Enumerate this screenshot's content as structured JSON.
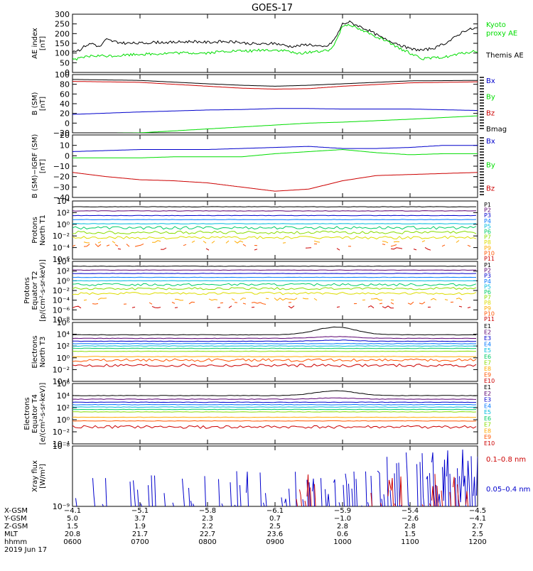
{
  "title": "GOES-17",
  "chart_data": [
    {
      "id": "ae",
      "type": "line",
      "ylabel": [
        "AE index",
        "[nT]"
      ],
      "ylim": [
        0,
        300
      ],
      "ticks": [
        "0",
        "50",
        "100",
        "150",
        "200",
        "250",
        "300"
      ],
      "tick_values": [
        0,
        50,
        100,
        150,
        200,
        250,
        300
      ],
      "x": [
        6.0,
        6.1,
        6.2,
        6.3,
        6.4,
        6.5,
        6.6,
        6.8,
        7.0,
        7.2,
        7.5,
        7.8,
        8.0,
        8.3,
        8.6,
        8.8,
        9.0,
        9.2,
        9.3,
        9.5,
        9.7,
        9.8,
        9.9,
        10.0,
        10.1,
        10.2,
        10.4,
        10.6,
        10.8,
        11.0,
        11.2,
        11.4,
        11.6,
        11.8,
        12.0
      ],
      "series": [
        {
          "name": "Themis AE",
          "color": "#000000",
          "values": [
            110,
            115,
            140,
            150,
            130,
            170,
            160,
            150,
            150,
            155,
            155,
            160,
            155,
            160,
            150,
            145,
            150,
            135,
            135,
            145,
            130,
            140,
            180,
            250,
            260,
            245,
            215,
            175,
            150,
            120,
            115,
            130,
            165,
            215,
            230
          ]
        },
        {
          "name": "Kyoto proxy AE",
          "color": "#00dd00",
          "values": [
            70,
            70,
            80,
            85,
            85,
            85,
            85,
            90,
            95,
            95,
            100,
            100,
            100,
            110,
            110,
            115,
            115,
            110,
            95,
            105,
            110,
            110,
            160,
            240,
            250,
            230,
            200,
            170,
            130,
            100,
            70,
            75,
            85,
            100,
            110
          ]
        }
      ],
      "legend": [
        {
          "text": "Kyoto",
          "color": "#00dd00"
        },
        {
          "text": "proxy AE",
          "color": "#00dd00"
        },
        {
          "text": "Themis AE",
          "color": "#000000"
        }
      ]
    },
    {
      "id": "bsm",
      "type": "line",
      "ylabel": [
        "B (SM)",
        "[nT]"
      ],
      "ylim": [
        -20,
        100
      ],
      "ticks": [
        "−20",
        "0",
        "20",
        "40",
        "60",
        "80",
        "100"
      ],
      "tick_values": [
        -20,
        0,
        20,
        40,
        60,
        80,
        100
      ],
      "x": [
        6.0,
        7.0,
        8.0,
        8.5,
        9.0,
        9.5,
        10.0,
        11.0,
        12.0
      ],
      "series": [
        {
          "name": "Bx",
          "color": "#0000cc",
          "values": [
            18,
            23,
            27,
            28,
            30,
            30,
            29,
            29,
            26
          ]
        },
        {
          "name": "By",
          "color": "#00dd00",
          "values": [
            -22,
            -20,
            -12,
            -8,
            -4,
            0,
            2,
            8,
            15
          ]
        },
        {
          "name": "Bz",
          "color": "#cc0000",
          "values": [
            86,
            84,
            76,
            72,
            70,
            71,
            76,
            83,
            85
          ]
        },
        {
          "name": "Bmag",
          "color": "#000000",
          "values": [
            90,
            88,
            81,
            78,
            76,
            78,
            81,
            87,
            88
          ]
        }
      ],
      "legend": [
        {
          "text": "Bx",
          "color": "#0000cc"
        },
        {
          "text": "By",
          "color": "#00dd00"
        },
        {
          "text": "Bz",
          "color": "#cc0000"
        },
        {
          "text": "Bmag",
          "color": "#000000"
        }
      ]
    },
    {
      "id": "bigrf",
      "type": "line",
      "ylabel": [
        "B (SM)−IGRF (SM)",
        "[nT]"
      ],
      "ylim": [
        -40,
        20
      ],
      "ticks": [
        "−40",
        "−30",
        "−20",
        "−10",
        "0",
        "10",
        "20"
      ],
      "tick_values": [
        -40,
        -30,
        -20,
        -10,
        0,
        10,
        20
      ],
      "x": [
        6.0,
        6.5,
        7.0,
        7.5,
        8.0,
        8.5,
        9.0,
        9.5,
        10.0,
        10.5,
        11.0,
        11.5,
        12.0
      ],
      "series": [
        {
          "name": "Bx",
          "color": "#0000cc",
          "values": [
            4,
            5,
            6,
            6,
            6,
            7,
            8,
            9,
            7,
            7,
            8,
            10,
            10
          ]
        },
        {
          "name": "By",
          "color": "#00dd00",
          "values": [
            -2,
            -2,
            -2,
            -1,
            -1,
            -1,
            2,
            4,
            6,
            3,
            1,
            2,
            2
          ]
        },
        {
          "name": "Bz",
          "color": "#cc0000",
          "values": [
            -16,
            -20,
            -23,
            -24,
            -26,
            -30,
            -34,
            -32,
            -24,
            -19,
            -18,
            -17,
            -16
          ]
        }
      ],
      "legend": [
        {
          "text": "Bx",
          "color": "#0000cc"
        },
        {
          "text": "By",
          "color": "#00dd00"
        },
        {
          "text": "Bz",
          "color": "#cc0000"
        }
      ]
    },
    {
      "id": "p_t1",
      "type": "line",
      "log": true,
      "ylabel": [
        "Protons",
        "North T1"
      ],
      "ylim": [
        -6,
        4
      ],
      "ticks": [
        "10⁴",
        "10²",
        "10⁰",
        "10⁻²",
        "10⁻⁴",
        "10⁻⁶"
      ],
      "tick_values": [
        4,
        2,
        0,
        -2,
        -4,
        -6
      ],
      "series": [
        {
          "name": "P1",
          "color": "#000000",
          "level": 3.0
        },
        {
          "name": "P2",
          "color": "#5a0070",
          "level": 2.3
        },
        {
          "name": "P3",
          "color": "#0000cc",
          "level": 1.5
        },
        {
          "name": "P4",
          "color": "#0077ff",
          "level": 0.8
        },
        {
          "name": "P5",
          "color": "#00bbdd",
          "level": 0.1
        },
        {
          "name": "P6",
          "color": "#00cc66",
          "level": -0.6
        },
        {
          "name": "P7",
          "color": "#88dd00",
          "level": -1.4
        },
        {
          "name": "P8",
          "color": "#dddd00",
          "level": -2.3
        },
        {
          "name": "P9",
          "color": "#ffaa00",
          "level": -3.0
        },
        {
          "name": "P10",
          "color": "#ff5500",
          "level": -3.6
        },
        {
          "name": "P11",
          "color": "#cc0000",
          "level": -4.2
        }
      ]
    },
    {
      "id": "p_t2",
      "type": "line",
      "log": true,
      "ylabel": [
        "Protons",
        "Equator T2",
        "[p/(cm²-s-sr-keV)]"
      ],
      "ylim": [
        -8,
        4
      ],
      "ticks": [
        "10⁴",
        "10²",
        "10⁰",
        "10⁻²",
        "10⁻⁴",
        "10⁻⁶",
        "10⁻⁸"
      ],
      "tick_values": [
        4,
        2,
        0,
        -2,
        -4,
        -6,
        -8
      ],
      "series": [
        {
          "name": "P1",
          "color": "#000000",
          "level": 3.0
        },
        {
          "name": "P2",
          "color": "#5a0070",
          "level": 2.2
        },
        {
          "name": "P3",
          "color": "#0000cc",
          "level": 1.5
        },
        {
          "name": "P4",
          "color": "#0077ff",
          "level": 0.7
        },
        {
          "name": "P5",
          "color": "#00bbdd",
          "level": 0.0
        },
        {
          "name": "P6",
          "color": "#00cc66",
          "level": -0.8
        },
        {
          "name": "P7",
          "color": "#88dd00",
          "level": -1.6
        },
        {
          "name": "P8",
          "color": "#dddd00",
          "level": -2.6
        },
        {
          "name": "P9",
          "color": "#ffaa00",
          "level": -3.8
        },
        {
          "name": "P10",
          "color": "#ff5500",
          "level": -4.6
        },
        {
          "name": "P11",
          "color": "#cc0000",
          "level": -5.4
        }
      ]
    },
    {
      "id": "e_t3",
      "type": "line",
      "log": true,
      "ylabel": [
        "Electrons",
        "North T3"
      ],
      "ylim": [
        -4,
        6
      ],
      "ticks": [
        "10⁶",
        "10⁴",
        "10²",
        "10⁰",
        "10⁻²",
        "10⁻⁴"
      ],
      "tick_values": [
        6,
        4,
        2,
        0,
        -2,
        -4
      ],
      "series": [
        {
          "name": "E1",
          "color": "#000000",
          "level": 3.9,
          "bump": 1.3
        },
        {
          "name": "E2",
          "color": "#5a0070",
          "level": 3.3,
          "bump": 0.3
        },
        {
          "name": "E3",
          "color": "#0000cc",
          "level": 2.8,
          "bump": 0.2
        },
        {
          "name": "E4",
          "color": "#0077ff",
          "level": 2.4
        },
        {
          "name": "E5",
          "color": "#00bbdd",
          "level": 2.0
        },
        {
          "name": "E6",
          "color": "#00cc66",
          "level": 1.6
        },
        {
          "name": "E7",
          "color": "#88dd00",
          "level": 1.1
        },
        {
          "name": "E8",
          "color": "#ffaa00",
          "level": 0.2
        },
        {
          "name": "E9",
          "color": "#ff5500",
          "level": -0.4
        },
        {
          "name": "E10",
          "color": "#cc0000",
          "level": -1.3
        }
      ]
    },
    {
      "id": "e_t4",
      "type": "line",
      "log": true,
      "ylabel": [
        "Electrons",
        "Equator T4",
        "[e/(cm²-s-sr-keV)]"
      ],
      "ylim": [
        -4,
        6
      ],
      "ticks": [
        "10⁶",
        "10⁴",
        "10²",
        "10⁰",
        "10⁻²",
        "10⁻⁴"
      ],
      "tick_values": [
        6,
        4,
        2,
        0,
        -2,
        -4
      ],
      "series": [
        {
          "name": "E1",
          "color": "#000000",
          "level": 4.0,
          "bump": 0.8
        },
        {
          "name": "E2",
          "color": "#5a0070",
          "level": 3.4,
          "bump": 0.2
        },
        {
          "name": "E3",
          "color": "#0000cc",
          "level": 2.9
        },
        {
          "name": "E4",
          "color": "#0077ff",
          "level": 2.5
        },
        {
          "name": "E5",
          "color": "#00bbdd",
          "level": 2.1
        },
        {
          "name": "E6",
          "color": "#00cc66",
          "level": 1.7
        },
        {
          "name": "E7",
          "color": "#88dd00",
          "level": 1.3
        },
        {
          "name": "E8",
          "color": "#ffaa00",
          "level": 0.4
        },
        {
          "name": "E9",
          "color": "#ff5500",
          "level": -0.2
        },
        {
          "name": "E10",
          "color": "#cc0000",
          "level": -1.2
        }
      ]
    },
    {
      "id": "xray",
      "type": "line",
      "log": true,
      "ylabel": [
        "Xray flux",
        "[W/m²]"
      ],
      "ylim": [
        -9,
        -8
      ],
      "ticks": [
        "10⁻⁸",
        "10⁻⁹"
      ],
      "tick_values": [
        -8,
        -9
      ],
      "series": [
        {
          "name": "0.1–0.8 nm",
          "color": "#cc0000"
        },
        {
          "name": "0.05–0.4 nm",
          "color": "#0000cc"
        }
      ],
      "legend": [
        {
          "text": "0.1–0.8 nm",
          "color": "#cc0000"
        },
        {
          "text": "0.05–0.4 nm",
          "color": "#0000cc"
        }
      ]
    }
  ],
  "xaxis": {
    "range": [
      6,
      12
    ],
    "row_labels": [
      "X-GSM",
      "Y-GSM",
      "Z-GSM",
      "MLT",
      "hhmm",
      "2019 Jun 17"
    ],
    "columns": [
      {
        "x": 6,
        "values": [
          "−4.1",
          "5.0",
          "1.5",
          "20.8",
          "0600"
        ]
      },
      {
        "x": 7,
        "values": [
          "−5.1",
          "3.7",
          "1.9",
          "21.7",
          "0700"
        ]
      },
      {
        "x": 8,
        "values": [
          "−5.8",
          "2.3",
          "2.2",
          "22.7",
          "0800"
        ]
      },
      {
        "x": 9,
        "values": [
          "−6.1",
          "0.7",
          "2.5",
          "23.6",
          "0900"
        ]
      },
      {
        "x": 10,
        "values": [
          "−5.9",
          "−1.0",
          "2.8",
          "0.6",
          "1000"
        ]
      },
      {
        "x": 11,
        "values": [
          "−5.4",
          "−2.6",
          "2.8",
          "1.5",
          "1100"
        ]
      },
      {
        "x": 12,
        "values": [
          "−4.5",
          "−4.1",
          "2.7",
          "2.5",
          "1200"
        ]
      }
    ]
  }
}
